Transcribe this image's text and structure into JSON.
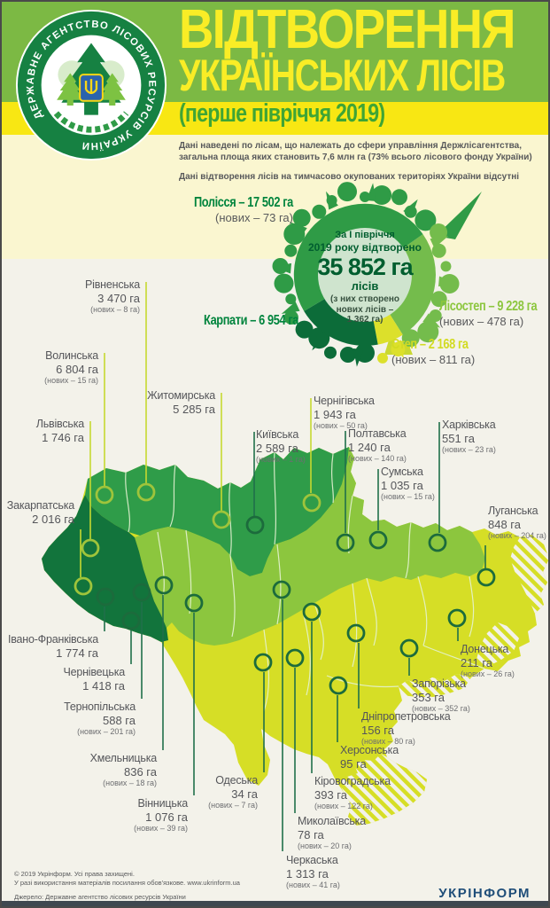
{
  "logo": {
    "ring_text": "ДЕРЖАВНЕ АГЕНТСТВО ЛІСОВИХ РЕСУРСІВ УКРАЇНИ"
  },
  "title": {
    "line1": "ВІДТВОРЕННЯ",
    "line2": "УКРАЇНСЬКИХ ЛІСІВ",
    "line3": "(перше півріччя 2019)"
  },
  "intro": {
    "line1": "Дані наведені по лісам, що належать до сфери управління Держлісагентства,",
    "line2": "загальна площа яких становить 7,6 млн га (73% всього лісового фонду України)",
    "line3": "Дані відтворення лісів на тимчасово окупованих територіях України відсутні"
  },
  "chart_data": {
    "type": "pie",
    "title": "За І півріччя 2019 року відтворено 35 852 га лісів",
    "total_ha": 35852,
    "new_forests_ha": 1362,
    "legend_position": "around",
    "series": [
      {
        "name": "Полісся",
        "value_ha": 17502,
        "new_ha": 73,
        "color": "#2F9B46"
      },
      {
        "name": "Лісостеп",
        "value_ha": 9228,
        "new_ha": 478,
        "color": "#74BC4C"
      },
      {
        "name": "Степ",
        "value_ha": 2168,
        "new_ha": 811,
        "color": "#DCE02B"
      },
      {
        "name": "Карпати",
        "value_ha": 6954,
        "new_ha": null,
        "color": "#0C6C39"
      }
    ]
  },
  "center_circle": {
    "line1": "За І півріччя",
    "line2": "2019 року відтворено",
    "total": "35 852 га",
    "unit": "лісів",
    "note1": "(з них створено",
    "note2": "нових лісів –",
    "note3": "1 362 га)"
  },
  "zones": {
    "polissia": {
      "label": "Полісся – 17 502 га",
      "new": "(нових – 73 га)"
    },
    "karpaty": {
      "label": "Карпати – 6 954 га"
    },
    "lisostep": {
      "label": "Лісостеп – 9 228 га",
      "new": "(нових – 478 га)"
    },
    "step": {
      "label": "Степ – 2 168 га",
      "new": "(нових – 811 га)"
    }
  },
  "map": {
    "regions": [
      {
        "name": "Волинська",
        "area": "6 804 га",
        "new": "(нових – 15 га)"
      },
      {
        "name": "Рівненська",
        "area": "3 470 га",
        "new": "(нових – 8 га)"
      },
      {
        "name": "Львівська",
        "area": "1 746 га",
        "new": null
      },
      {
        "name": "Закарпатська",
        "area": "2 016 га",
        "new": null
      },
      {
        "name": "Житомирська",
        "area": "5 285 га",
        "new": null
      },
      {
        "name": "Київська",
        "area": "2 589 га",
        "new": "(нових – 1 га)"
      },
      {
        "name": "Чернігівська",
        "area": "1 943 га",
        "new": "(нових – 50 га)"
      },
      {
        "name": "Полтавська",
        "area": "1 240 га",
        "new": "(нових – 140 га)"
      },
      {
        "name": "Сумська",
        "area": "1 035 га",
        "new": "(нових – 15 га)"
      },
      {
        "name": "Харківська",
        "area": "551 га",
        "new": "(нових – 23 га)"
      },
      {
        "name": "Луганська",
        "area": "848 га",
        "new": "(нових – 204 га)"
      },
      {
        "name": "Івано-Франківська",
        "area": "1 774 га",
        "new": null
      },
      {
        "name": "Чернівецька",
        "area": "1 418 га",
        "new": null
      },
      {
        "name": "Тернопільська",
        "area": "588 га",
        "new": "(нових – 201 га)"
      },
      {
        "name": "Хмельницька",
        "area": "836 га",
        "new": "(нових – 18 га)"
      },
      {
        "name": "Вінницька",
        "area": "1 076 га",
        "new": "(нових – 39 га)"
      },
      {
        "name": "Одеська",
        "area": "34 га",
        "new": "(нових – 7 га)"
      },
      {
        "name": "Черкаська",
        "area": "1 313 га",
        "new": "(нових – 41 га)"
      },
      {
        "name": "Миколаївська",
        "area": "78 га",
        "new": "(нових – 20 га)"
      },
      {
        "name": "Кіровоградська",
        "area": "393 га",
        "new": "(нових – 122 га)"
      },
      {
        "name": "Херсонська",
        "area": "95 га",
        "new": null
      },
      {
        "name": "Дніпропетровська",
        "area": "156 га",
        "new": "(нових – 80 га)"
      },
      {
        "name": "Запорізька",
        "area": "353 га",
        "new": "(нових – 352 га)"
      },
      {
        "name": "Донецька",
        "area": "211 га",
        "new": "(нових – 26 га)"
      }
    ]
  },
  "footer": {
    "copyright": "© 2019 Укрінформ. Усі права захищені.",
    "usage": "У разі використання матеріалів посилання обов'язкове. www.ukrinform.ua",
    "source": "Джерело: Державне агентство лісових ресурсів України",
    "brand": "УКРІНФОРМ"
  },
  "colors": {
    "header_green": "#7CB944",
    "header_yellow": "#F8E713",
    "pale_yellow": "#FAF6D0",
    "page_bg": "#F3F2EA",
    "accent_green": "#00843D",
    "map_steppe": "#D6DE26",
    "map_lisostep": "#8CC63E",
    "map_north": "#2F9C49",
    "map_west_dark": "#12743C",
    "line_light": "#C6D930",
    "line_dark": "#20704A",
    "ring_light": "#9FC43B",
    "ring_dark": "#1C6B3C",
    "brand_blue": "#1F4E79"
  }
}
